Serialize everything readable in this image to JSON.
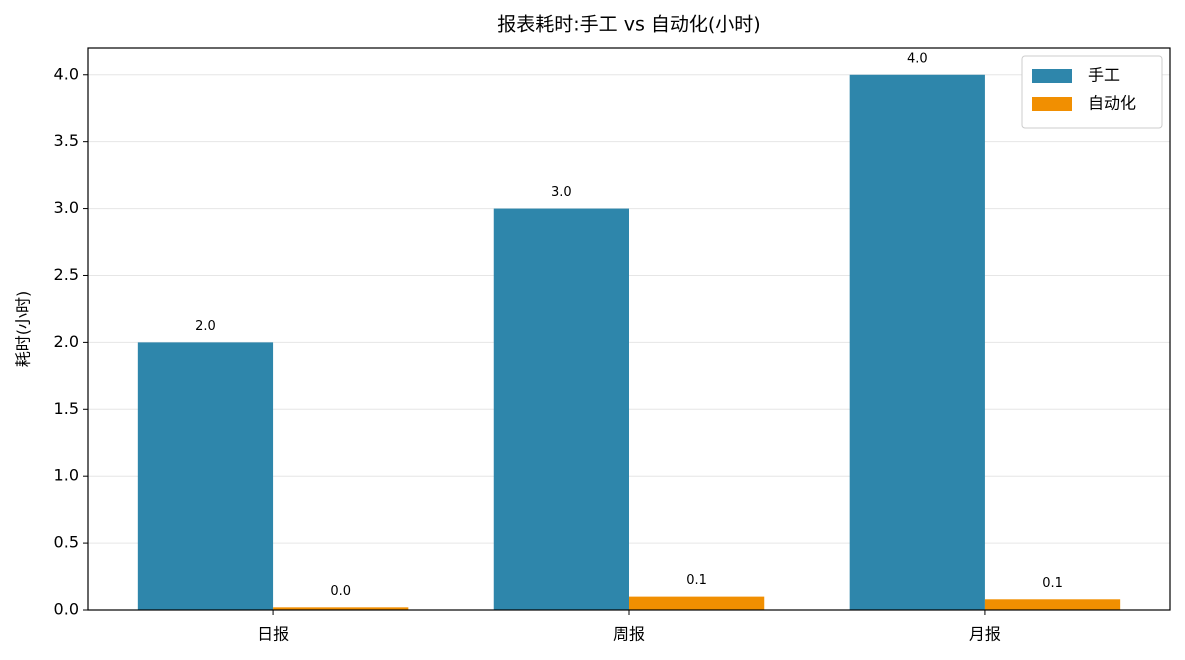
{
  "chart_data": {
    "type": "bar",
    "title": "报表耗时:手工 vs 自动化(小时)",
    "y_label": "耗时(小时)",
    "categories": [
      "日报",
      "周报",
      "月报"
    ],
    "series": [
      {
        "name": "手工",
        "color": "#2e86ab",
        "values": [
          2,
          3,
          4
        ],
        "value_labels": [
          "2.0",
          "3.0",
          "4.0"
        ]
      },
      {
        "name": "自动化",
        "color": "#f18f01",
        "values": [
          0.02,
          0.1,
          0.08
        ],
        "value_labels": [
          "0.0",
          "0.1",
          "0.1"
        ]
      }
    ],
    "ylim": [
      0,
      4.2
    ],
    "yticks": [
      {
        "value": 0,
        "label": "0.0"
      },
      {
        "value": 0.5,
        "label": "0.5"
      },
      {
        "value": 1,
        "label": "1.0"
      },
      {
        "value": 1.5,
        "label": "1.5"
      },
      {
        "value": 2,
        "label": "2.0"
      },
      {
        "value": 2.5,
        "label": "2.5"
      },
      {
        "value": 3,
        "label": "3.0"
      },
      {
        "value": 3.5,
        "label": "3.5"
      },
      {
        "value": 4,
        "label": "4.0"
      }
    ],
    "grid": true,
    "legend": "upper-right"
  }
}
